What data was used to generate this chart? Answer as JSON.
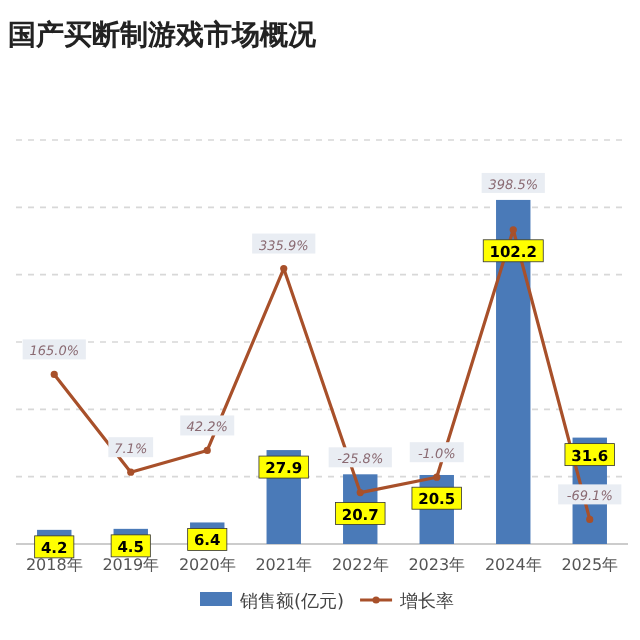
{
  "chart_data": {
    "type": "bar",
    "title": "国产买断制游戏市场概况",
    "categories": [
      "2018年",
      "2019年",
      "2020年",
      "2021年",
      "2022年",
      "2023年",
      "2024年",
      "2025年"
    ],
    "series": [
      {
        "name": "销售额(亿元)",
        "color": "#4a7ab8",
        "values": [
          4.2,
          4.5,
          6.4,
          27.9,
          20.7,
          20.5,
          102.2,
          31.6
        ]
      },
      {
        "name": "增长率",
        "type": "line",
        "axis": "y2",
        "color": "#a8502a",
        "values": [
          165.0,
          7.1,
          42.2,
          335.9,
          -25.8,
          -1.0,
          398.5,
          -69.1
        ],
        "value_labels": [
          "165.0%",
          "7.1%",
          "42.2%",
          "335.9%",
          "-25.8%",
          "-1.0%",
          "398.5%",
          "-69.1%"
        ]
      }
    ],
    "ylim": [
      0,
      120
    ],
    "yticks": [
      {
        "value": 20,
        "label": null
      },
      {
        "value": 40,
        "label": null
      },
      {
        "value": 60,
        "label": null
      },
      {
        "value": 80,
        "label": null
      },
      {
        "value": 100,
        "label": null
      },
      {
        "value": 120,
        "label": null
      }
    ],
    "grid": "y",
    "data_labels": true,
    "marker": "circle",
    "line_style": "solid",
    "legend": "bottom",
    "tick_labels": "x"
  }
}
